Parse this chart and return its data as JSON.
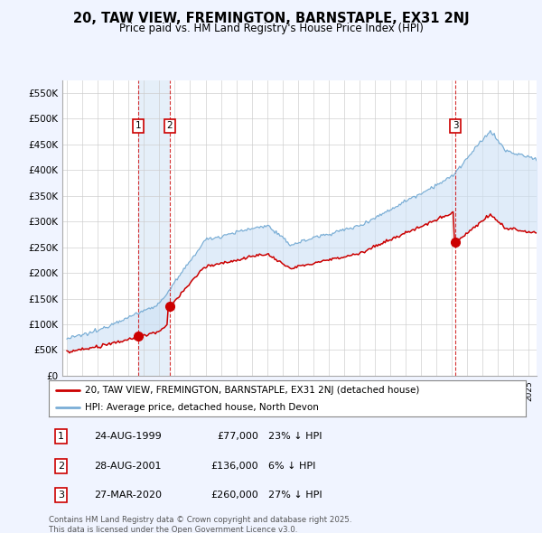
{
  "title_line1": "20, TAW VIEW, FREMINGTON, BARNSTAPLE, EX31 2NJ",
  "title_line2": "Price paid vs. HM Land Registry's House Price Index (HPI)",
  "legend_label_red": "20, TAW VIEW, FREMINGTON, BARNSTAPLE, EX31 2NJ (detached house)",
  "legend_label_blue": "HPI: Average price, detached house, North Devon",
  "footer": "Contains HM Land Registry data © Crown copyright and database right 2025.\nThis data is licensed under the Open Government Licence v3.0.",
  "transactions": [
    {
      "num": 1,
      "date": "24-AUG-1999",
      "price": 77000,
      "pct": "23%",
      "dir": "↓",
      "date_x": 1999.646
    },
    {
      "num": 2,
      "date": "28-AUG-2001",
      "price": 136000,
      "pct": "6%",
      "dir": "↓",
      "date_x": 2001.657
    },
    {
      "num": 3,
      "date": "27-MAR-2020",
      "price": 260000,
      "pct": "27%",
      "dir": "↓",
      "date_x": 2020.233
    }
  ],
  "hpi_color": "#7aaed6",
  "price_color": "#cc0000",
  "fill_color": "#cce0f5",
  "background_color": "#f0f4ff",
  "plot_bg_color": "#ffffff",
  "ylim": [
    0,
    575000
  ],
  "xlim_start": 1994.7,
  "xlim_end": 2025.5,
  "yticks": [
    0,
    50000,
    100000,
    150000,
    200000,
    250000,
    300000,
    350000,
    400000,
    450000,
    500000,
    550000
  ],
  "ytick_labels": [
    "£0",
    "£50K",
    "£100K",
    "£150K",
    "£200K",
    "£250K",
    "£300K",
    "£350K",
    "£400K",
    "£450K",
    "£500K",
    "£550K"
  ],
  "xticks": [
    1995,
    1996,
    1997,
    1998,
    1999,
    2000,
    2001,
    2002,
    2003,
    2004,
    2005,
    2006,
    2007,
    2008,
    2009,
    2010,
    2011,
    2012,
    2013,
    2014,
    2015,
    2016,
    2017,
    2018,
    2019,
    2020,
    2021,
    2022,
    2023,
    2024,
    2025
  ]
}
